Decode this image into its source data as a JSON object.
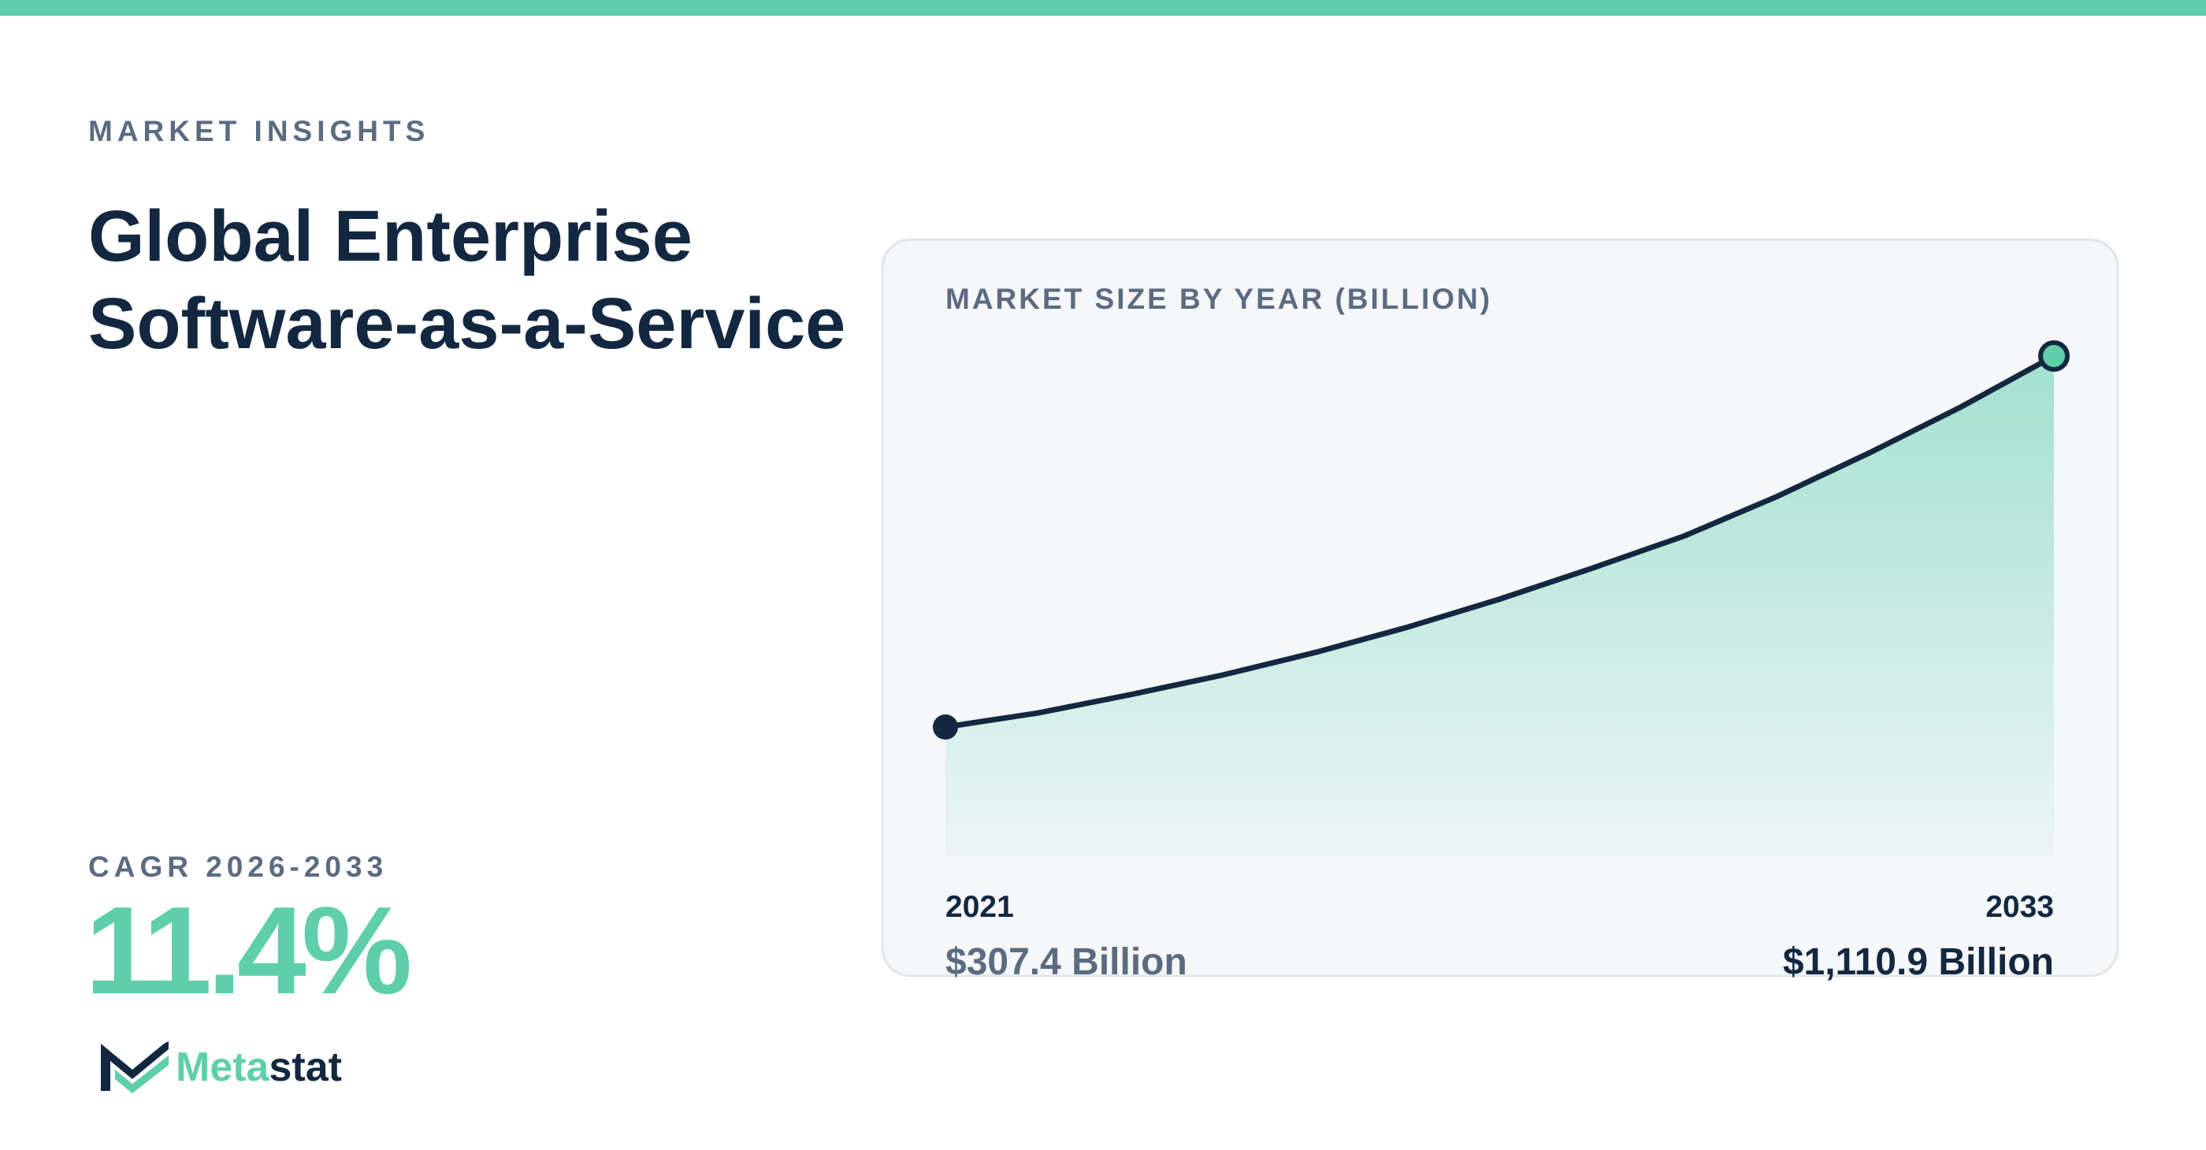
{
  "header": {
    "eyebrow": "MARKET INSIGHTS",
    "title_lines": [
      "Global Enterprise",
      "Software-as-a-Service"
    ]
  },
  "cagr": {
    "label": "CAGR 2026-2033",
    "value": "11.4%"
  },
  "brand": [
    "Meta",
    "stat"
  ],
  "chart_data": {
    "type": "area",
    "title": "MARKET SIZE BY YEAR (BILLION)",
    "categories": [
      "2021",
      null,
      null,
      null,
      null,
      null,
      null,
      null,
      null,
      null,
      null,
      null,
      "2033"
    ],
    "values": [
      307.4,
      337.8,
      377.4,
      420.0,
      468.7,
      523.5,
      584.4,
      651.3,
      721.3,
      806.5,
      900.9,
      1001.3,
      1110.9
    ],
    "value_labels": [
      "$307.4 Billion",
      null,
      null,
      null,
      null,
      null,
      null,
      null,
      null,
      null,
      null,
      null,
      "$1,110.9 Billion"
    ],
    "color": "#5ecfaa",
    "line_color": "#132840"
  }
}
